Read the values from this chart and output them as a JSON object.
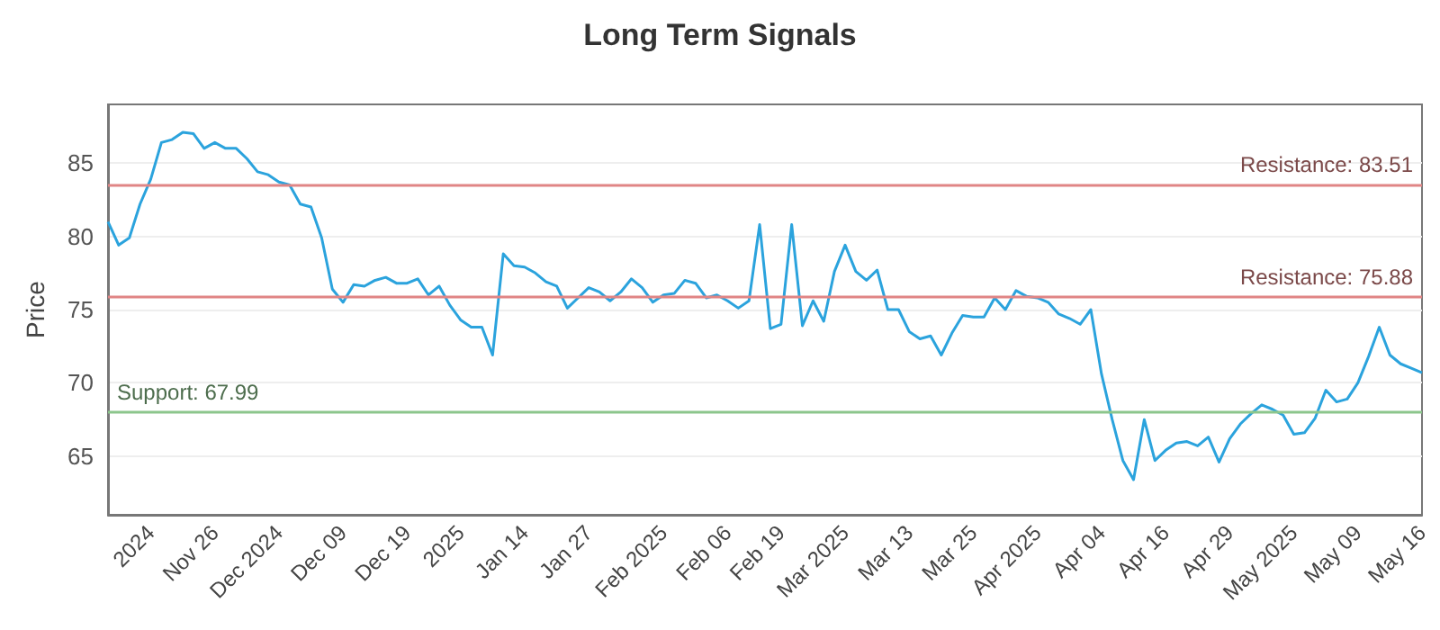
{
  "chart_data": {
    "type": "line",
    "title": "Long Term Signals",
    "ylabel": "Price",
    "categories": [
      null,
      null,
      null,
      null,
      "2024",
      null,
      null,
      null,
      null,
      null,
      "Nov 26",
      null,
      null,
      null,
      null,
      null,
      "Dec 2024",
      null,
      null,
      null,
      null,
      null,
      "Dec 09",
      null,
      null,
      null,
      null,
      null,
      "Dec 19",
      null,
      null,
      null,
      null,
      "2025",
      null,
      null,
      null,
      null,
      null,
      "Jan 14",
      null,
      null,
      null,
      null,
      null,
      "Jan 27",
      null,
      null,
      null,
      null,
      null,
      null,
      "Feb 2025",
      null,
      null,
      null,
      null,
      null,
      "Feb 06",
      null,
      null,
      null,
      null,
      "Feb 19",
      null,
      null,
      null,
      null,
      null,
      "Mar 2025",
      null,
      null,
      null,
      null,
      null,
      "Mar 13",
      null,
      null,
      null,
      null,
      null,
      "Mar 25",
      null,
      null,
      null,
      null,
      null,
      "Apr 2025",
      null,
      null,
      null,
      null,
      null,
      "Apr 04",
      null,
      null,
      null,
      null,
      null,
      "Apr 16",
      null,
      null,
      null,
      null,
      null,
      "Apr 29",
      null,
      null,
      null,
      null,
      null,
      "May 2025",
      null,
      null,
      null,
      null,
      null,
      "May 09",
      null,
      null,
      null,
      null,
      null,
      "May 16"
    ],
    "series": [
      {
        "color": "#2ba3dd",
        "values": [
          81.0,
          79.4,
          79.9,
          82.2,
          83.9,
          86.4,
          86.6,
          87.1,
          87.0,
          86.0,
          86.4,
          86.0,
          86.0,
          85.3,
          84.4,
          84.2,
          83.7,
          83.5,
          82.2,
          82.0,
          79.9,
          76.4,
          75.5,
          76.7,
          76.6,
          77.0,
          77.2,
          76.8,
          76.8,
          77.1,
          76.0,
          76.6,
          75.3,
          74.3,
          73.8,
          73.8,
          71.9,
          78.8,
          78.0,
          77.9,
          77.5,
          76.9,
          76.6,
          75.1,
          75.8,
          76.5,
          76.2,
          75.6,
          76.2,
          77.1,
          76.5,
          75.5,
          76.0,
          76.1,
          77.0,
          76.8,
          75.8,
          76.0,
          75.6,
          75.1,
          75.6,
          80.8,
          73.7,
          74.0,
          80.8,
          73.9,
          75.6,
          74.2,
          77.6,
          79.4,
          77.6,
          77.0,
          77.7,
          75.0,
          75.0,
          73.5,
          73.0,
          73.2,
          71.9,
          73.4,
          74.6,
          74.5,
          74.5,
          75.8,
          75.0,
          76.3,
          75.9,
          75.8,
          75.5,
          74.7,
          74.4,
          74.0,
          75.0,
          70.6,
          67.5,
          64.7,
          63.4,
          67.5,
          64.7,
          65.4,
          65.9,
          66.0,
          65.7,
          66.3,
          64.6,
          66.2,
          67.2,
          67.9,
          68.5,
          68.2,
          67.8,
          66.5,
          66.6,
          67.6,
          69.5,
          68.7,
          68.9,
          70.0,
          71.8,
          73.8,
          71.9,
          71.3,
          71.0,
          70.7
        ]
      }
    ],
    "ylim": [
      61,
      89
    ],
    "yticks": [
      65,
      70,
      75,
      80,
      85
    ],
    "grid": "y",
    "marker": "none",
    "line_style": "solid",
    "ref_lines": [
      {
        "axis": "y",
        "value": 83.51,
        "label": "Resistance: 83.51",
        "color": "#e08585"
      },
      {
        "axis": "y",
        "value": 75.88,
        "label": "Resistance: 75.88",
        "color": "#e08585"
      },
      {
        "axis": "y",
        "value": 67.99,
        "label": "Support: 67.99",
        "color": "#8cc68c"
      }
    ]
  }
}
